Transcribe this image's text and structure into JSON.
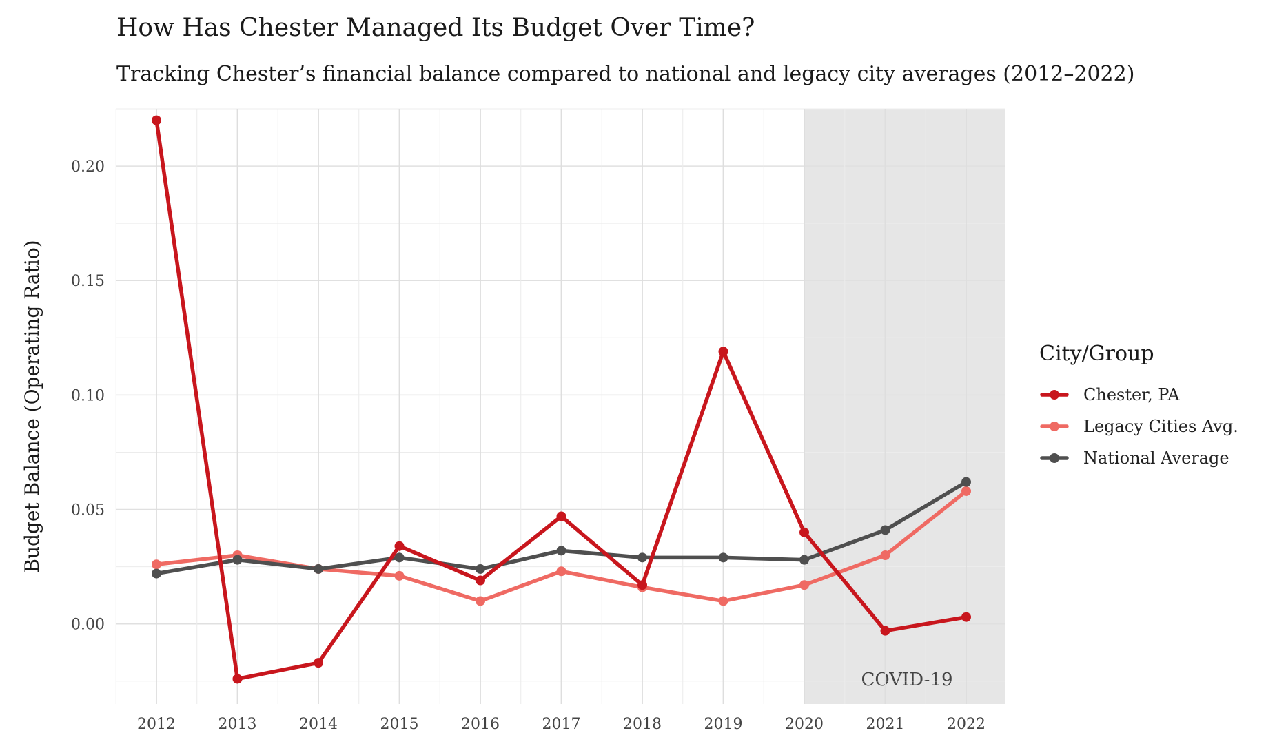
{
  "chart_data": {
    "type": "line",
    "title": "How Has Chester Managed Its Budget Over Time?",
    "subtitle": "Tracking Chester’s financial balance compared to national and legacy city averages (2012–2022)",
    "xlabel": "",
    "ylabel": "Budget Balance (Operating Ratio)",
    "x": [
      "2012",
      "2013",
      "2014",
      "2015",
      "2016",
      "2017",
      "2018",
      "2019",
      "2020",
      "2021",
      "2022"
    ],
    "yticks": [
      "0.00",
      "0.05",
      "0.10",
      "0.15",
      "0.20"
    ],
    "ylim": [
      -0.035,
      0.225
    ],
    "grid": true,
    "legend": {
      "title": "City/Group",
      "position": "right"
    },
    "shaded_region": {
      "from": "2020",
      "to": "2022",
      "label": "COVID-19",
      "color": "#e6e6e6"
    },
    "series": [
      {
        "name": "Chester, PA",
        "color": "#c8161d",
        "values": [
          0.22,
          -0.024,
          -0.017,
          0.034,
          0.019,
          0.047,
          0.017,
          0.119,
          0.04,
          -0.003,
          0.003
        ]
      },
      {
        "name": "Legacy Cities Avg.",
        "color": "#ef6a63",
        "values": [
          0.026,
          0.03,
          0.024,
          0.021,
          0.01,
          0.023,
          0.016,
          0.01,
          0.017,
          0.03,
          0.058
        ]
      },
      {
        "name": "National Average",
        "color": "#4f4f4f",
        "values": [
          0.022,
          0.028,
          0.024,
          0.029,
          0.024,
          0.032,
          0.029,
          0.029,
          0.028,
          0.041,
          0.062
        ]
      }
    ]
  }
}
